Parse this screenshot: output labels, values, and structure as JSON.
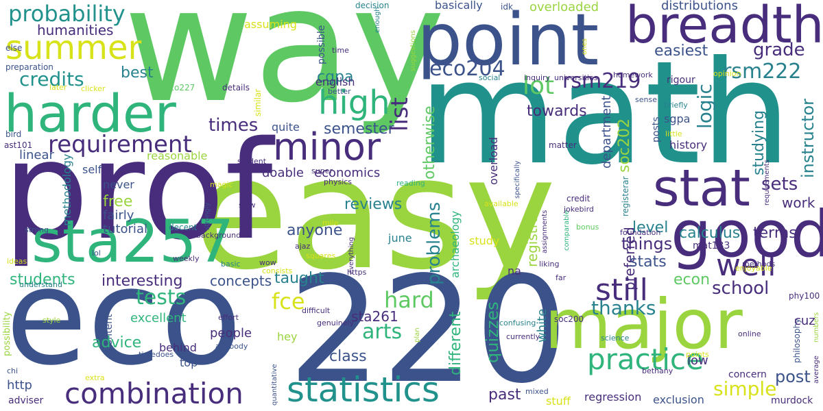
{
  "words": {
    "way": "way",
    "math": "math",
    "easy": "easy",
    "prof": "prof",
    "eco": "eco",
    "n220": "220",
    "point": "point",
    "breadth": "breadth",
    "harder": "harder",
    "major": "major",
    "good": "good",
    "sta257": "sta257",
    "stat": "stat",
    "minor": "minor",
    "statistics": "statistics",
    "combination": "combination",
    "summer": "summer",
    "probability": "probability",
    "high": "high",
    "requirement": "requirement",
    "credits": "credits",
    "humanities": "humanities",
    "eco204": "eco204",
    "lot": "lot",
    "rsm219": "rsm219",
    "rsm222": "rsm222",
    "grade": "grade",
    "easiest": "easiest",
    "list": "list",
    "cgpa": "cgpa",
    "logic": "logic",
    "times": "times",
    "best": "best",
    "towards": "towards",
    "studying": "studying",
    "instructor": "instructor",
    "sets": "sets",
    "work": "work",
    "soc202": "soc202",
    "department": "department",
    "still": "still",
    "well": "well",
    "thanks": "thanks",
    "school": "school",
    "practice": "practice",
    "simple": "simple",
    "post": "post",
    "hard": "hard",
    "fce": "fce",
    "tests": "tests",
    "arts": "arts",
    "class": "class",
    "problems": "problems",
    "quizzes": "quizzes",
    "registrar": "registrar",
    "preferred": "preferred",
    "otherwise": "otherwise",
    "different": "different",
    "interesting": "interesting",
    "concepts": "concepts",
    "students": "students",
    "reviews": "reviews",
    "anyone": "anyone",
    "calculus": "calculus",
    "terms": "terms",
    "level": "level",
    "things": "things",
    "stats": "stats",
    "econ": "econ",
    "sta261": "sta261",
    "taught": "taught",
    "advice": "advice",
    "excellent": "excellent",
    "people": "people",
    "past": "past",
    "semester": "semester",
    "economics": "economics",
    "doable": "doable",
    "free": "free",
    "fairly": "fairly",
    "tutorial": "tutorial",
    "never": "never",
    "linear": "linear",
    "methodology": "methodology",
    "self": "self",
    "reasonable": "reasonable",
    "assuming": "assuming",
    "basically": "basically",
    "overloaded": "overloaded",
    "distributions": "distributions",
    "english": "english",
    "quite": "quite",
    "possible": "possible",
    "history": "history",
    "sgpa": "sgpa",
    "rigour": "rigour",
    "overload": "overload",
    "white": "white",
    "study": "study",
    "june": "june",
    "behind": "behind",
    "top": "top",
    "http": "http",
    "adviser": "adviser",
    "content": "content",
    "possibility": "possibility",
    "hey": "hey",
    "stuff": "stuff",
    "regression": "regression",
    "exclusion": "exclusion",
    "concern": "concern",
    "low": "low",
    "cuz": "cuz",
    "murdock": "murdock",
    "mat133": "mat133",
    "phy100": "phy100",
    "soc200": "soc200",
    "na": "na",
    "archaeology": "archaeology",
    "economics2": "economics",
    "preparation": "preparation",
    "ast101": "ast101",
    "bird": "bird",
    "eco227": "eco227",
    "later": "later",
    "clicker": "clicker",
    "details": "details",
    "similar": "similar",
    "social": "social",
    "better": "better",
    "inquiry": "inquiry",
    "universities": "universities",
    "homework": "homework",
    "opinion": "opinion",
    "sense": "sense",
    "briefly": "briefly",
    "little": "little",
    "matter": "matter",
    "posts": "posts",
    "registerar": "registerar",
    "credit": "credit",
    "jokebird": "jokebird",
    "foundation": "foundation",
    "bonus": "bonus",
    "available": "available",
    "specifically": "specifically",
    "reading": "reading",
    "super": "super",
    "physics": "physics",
    "magic": "magic",
    "student": "student",
    "decent": "decent",
    "slow": "slow",
    "strongly": "strongly",
    "strong": "strong",
    "background": "background",
    "lol": "lol",
    "ideas": "ideas",
    "weekly": "weekly",
    "basic": "basic",
    "wow": "wow",
    "consists": "consists",
    "ajaz": "ajaz",
    "squares": "squares",
    "everything": "everything",
    "mile": "mile",
    "https": "https",
    "liking": "liking",
    "understand": "understand",
    "effort": "effort",
    "difficult": "difficult",
    "genuinely": "genuinely",
    "anybody": "anybody",
    "timedoes": "timedoes",
    "style": "style",
    "chi": "chi",
    "extra": "extra",
    "quantitative": "quantitative",
    "plan": "plan",
    "currently": "currently",
    "confusing": "confusing",
    "mixed": "mixed",
    "far": "far",
    "online": "online",
    "science": "science",
    "bethany": "bethany",
    "points": "points",
    "enjoyable": "enjoyable",
    "comparable": "comparable",
    "assignments": "assignments",
    "methods": "methods",
    "philosophy": "philosophy",
    "numbers": "numbers",
    "average": "average",
    "requirements": "requirements",
    "ones": "ones",
    "idk": "idk",
    "decision": "decision",
    "enough": "enough",
    "suggestions": "suggestions",
    "time": "time",
    "else": "else"
  },
  "colors": {
    "green": "#5ec962",
    "teal": "#21918c",
    "navy": "#3b528b",
    "purple": "#472d7b",
    "lime": "#9ad43e",
    "yellow": "#d8e219",
    "seagreen": "#2fb47c",
    "cyan": "#27828e"
  }
}
